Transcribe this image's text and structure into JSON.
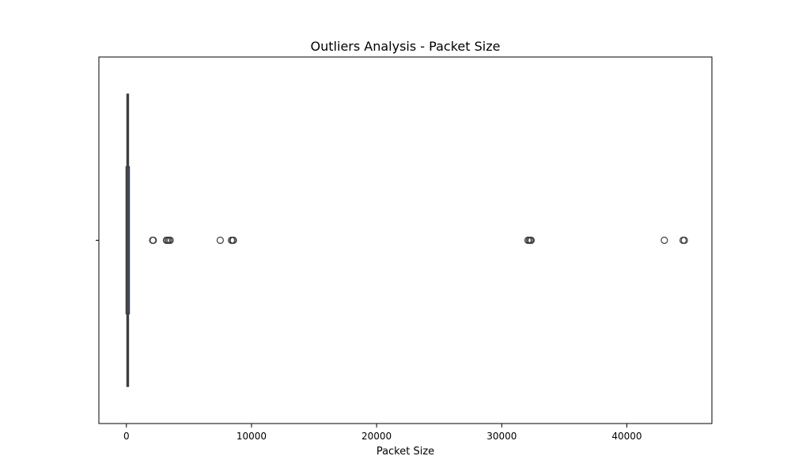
{
  "chart_data": {
    "type": "box",
    "title": "Outliers Analysis - Packet Size",
    "xlabel": "Packet Size",
    "ylabel": "",
    "xlim": [
      -2200,
      46800
    ],
    "xticks": [
      0,
      10000,
      20000,
      30000,
      40000
    ],
    "xtick_labels": [
      "0",
      "10000",
      "20000",
      "30000",
      "40000"
    ],
    "box": {
      "whisker_low": 60,
      "q1": 60,
      "median": 60,
      "q3": 150,
      "whisker_high": 150
    },
    "outliers": [
      2100,
      2150,
      3200,
      3300,
      3400,
      3500,
      7500,
      8400,
      8500,
      8550,
      32100,
      32200,
      32300,
      32350,
      43000,
      44500,
      44600
    ],
    "colors": {
      "box_edge": "#3f3f3f",
      "box_fill": "#4c72b0",
      "outlier_edge": "#3f3f3f",
      "axes": "#000000"
    },
    "grid": false,
    "legend": "none"
  }
}
